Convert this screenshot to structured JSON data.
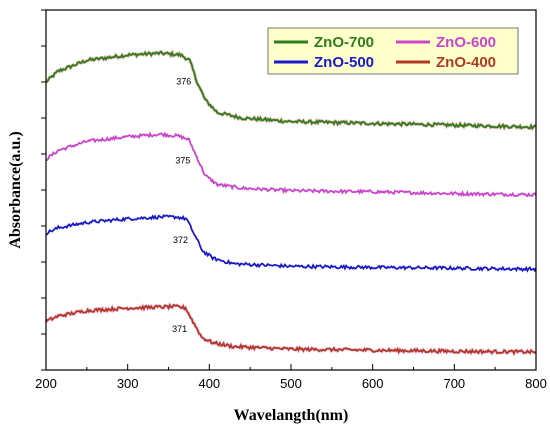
{
  "chart_data": {
    "type": "line",
    "title": "",
    "xlabel": "Wavelangth(nm)",
    "ylabel": "Absorbance(a.u.)",
    "xlim": [
      200,
      800
    ],
    "x_ticks": [
      200,
      300,
      400,
      500,
      600,
      700,
      800
    ],
    "y_tick_labels_shown": false,
    "y_unit": "a.u. (arbitrary, vertically offset curves)",
    "grid": false,
    "legend_position": "top-right",
    "legend_background": "#ffffcc",
    "series": [
      {
        "name": "ZnO-700",
        "color": "#2e7d1e",
        "edge_color": "#c0392b",
        "peak_label": "376",
        "points": [
          [
            200,
            0.8
          ],
          [
            215,
            0.83
          ],
          [
            250,
            0.86
          ],
          [
            300,
            0.875
          ],
          [
            340,
            0.88
          ],
          [
            365,
            0.875
          ],
          [
            376,
            0.86
          ],
          [
            385,
            0.8
          ],
          [
            395,
            0.75
          ],
          [
            410,
            0.715
          ],
          [
            440,
            0.7
          ],
          [
            500,
            0.69
          ],
          [
            600,
            0.685
          ],
          [
            700,
            0.68
          ],
          [
            800,
            0.675
          ]
        ]
      },
      {
        "name": "ZnO-600",
        "color": "#cc44cc",
        "peak_label": "375",
        "points": [
          [
            200,
            0.585
          ],
          [
            215,
            0.61
          ],
          [
            250,
            0.635
          ],
          [
            300,
            0.648
          ],
          [
            340,
            0.655
          ],
          [
            362,
            0.65
          ],
          [
            375,
            0.64
          ],
          [
            385,
            0.59
          ],
          [
            395,
            0.54
          ],
          [
            410,
            0.515
          ],
          [
            440,
            0.505
          ],
          [
            500,
            0.498
          ],
          [
            600,
            0.495
          ],
          [
            700,
            0.49
          ],
          [
            800,
            0.487
          ]
        ]
      },
      {
        "name": "ZnO-500",
        "color": "#1a1acc",
        "peak_label": "372",
        "points": [
          [
            200,
            0.38
          ],
          [
            215,
            0.395
          ],
          [
            250,
            0.41
          ],
          [
            300,
            0.42
          ],
          [
            340,
            0.425
          ],
          [
            360,
            0.425
          ],
          [
            372,
            0.42
          ],
          [
            382,
            0.375
          ],
          [
            392,
            0.33
          ],
          [
            405,
            0.31
          ],
          [
            430,
            0.295
          ],
          [
            500,
            0.288
          ],
          [
            600,
            0.285
          ],
          [
            700,
            0.283
          ],
          [
            800,
            0.28
          ]
        ]
      },
      {
        "name": "ZnO-400",
        "color": "#b03a22",
        "edge_color": "#e055cc",
        "peak_label": "371",
        "points": [
          [
            200,
            0.135
          ],
          [
            215,
            0.15
          ],
          [
            250,
            0.165
          ],
          [
            300,
            0.172
          ],
          [
            340,
            0.175
          ],
          [
            360,
            0.176
          ],
          [
            371,
            0.172
          ],
          [
            381,
            0.13
          ],
          [
            391,
            0.09
          ],
          [
            405,
            0.075
          ],
          [
            430,
            0.065
          ],
          [
            500,
            0.058
          ],
          [
            600,
            0.055
          ],
          [
            700,
            0.052
          ],
          [
            800,
            0.05
          ]
        ]
      }
    ]
  }
}
